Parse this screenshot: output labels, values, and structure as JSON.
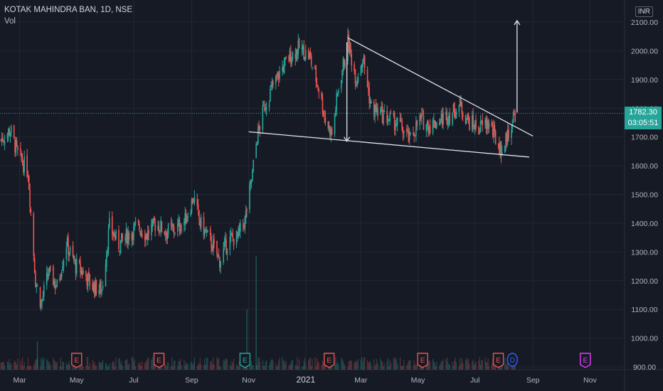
{
  "header": {
    "symbol": "KOTAK MAHINDRA BAN, 1D, NSE",
    "indicator": "Vol"
  },
  "currency_label": "INR",
  "last_price": {
    "value": "1782.30",
    "countdown": "03:05:51",
    "color": "#26a69a"
  },
  "colors": {
    "background": "#161a25",
    "up": "#26a69a",
    "down": "#ef5350",
    "grid": "#232733",
    "drawings": "#e0e3eb",
    "earnings": "#ef5350",
    "earnings_upcoming": "#e040fb",
    "dividend": "#2962ff"
  },
  "markers": [
    {
      "type": "earnings",
      "label": "E",
      "date": "2020-05-01",
      "color": "#ef5350"
    },
    {
      "type": "earnings",
      "label": "E",
      "date": "2020-07-28",
      "color": "#ef5350"
    },
    {
      "type": "earnings",
      "label": "E",
      "date": "2020-10-28",
      "color": "#26a69a"
    },
    {
      "type": "earnings",
      "label": "E",
      "date": "2021-01-26",
      "color": "#ef5350"
    },
    {
      "type": "earnings",
      "label": "E",
      "date": "2021-05-06",
      "color": "#ef5350"
    },
    {
      "type": "earnings",
      "label": "E",
      "date": "2021-07-26",
      "color": "#ef5350"
    },
    {
      "type": "dividend",
      "label": "D",
      "date": "2021-08-10",
      "color": "#2962ff"
    },
    {
      "type": "earnings",
      "label": "E",
      "date": "2021-10-27",
      "color": "#e040fb"
    }
  ],
  "drawings": {
    "upper_trendline": [
      [
        "2021-02-15",
        2045
      ],
      [
        "2021-09-01",
        1703
      ]
    ],
    "lower_trendline": [
      [
        "2020-11-01",
        1718
      ],
      [
        "2021-08-28",
        1630
      ]
    ],
    "target_arrow_down": [
      [
        "2021-02-14",
        2030
      ],
      [
        "2021-02-14",
        1685
      ]
    ],
    "target_arrow_up": [
      [
        "2021-08-15",
        1785
      ],
      [
        "2021-08-15",
        2105
      ]
    ]
  },
  "chart_data": {
    "type": "candlestick",
    "y_axis": {
      "ylim": [
        900,
        2130
      ],
      "ticks": [
        900,
        1000,
        1100,
        1200,
        1300,
        1400,
        1500,
        1600,
        1700,
        1800,
        1900,
        2000,
        2100
      ],
      "tick_labels": [
        "900.00",
        "1000.00",
        "1100.00",
        "1200.00",
        "1300.00",
        "1400.00",
        "1500.00",
        "1600.00",
        "1700.00",
        "1800.00",
        "1900.00",
        "2000.00",
        "2100.00"
      ]
    },
    "x_axis": {
      "xlim": [
        "2020-02-09",
        "2021-12-08"
      ],
      "ticks": [
        {
          "date": "2020-03-01",
          "label": "Mar"
        },
        {
          "date": "2020-05-01",
          "label": "May"
        },
        {
          "date": "2020-07-01",
          "label": "Jul"
        },
        {
          "date": "2020-09-01",
          "label": "Sep"
        },
        {
          "date": "2020-11-01",
          "label": "Nov"
        },
        {
          "date": "2021-01-01",
          "label": "2021"
        },
        {
          "date": "2021-03-01",
          "label": "Mar"
        },
        {
          "date": "2021-05-01",
          "label": "May"
        },
        {
          "date": "2021-07-01",
          "label": "Jul"
        },
        {
          "date": "2021-09-01",
          "label": "Sep"
        },
        {
          "date": "2021-11-01",
          "label": "Nov"
        }
      ]
    },
    "grid": true,
    "price_path": [
      [
        "2020-02-10",
        1690
      ],
      [
        "2020-02-20",
        1725
      ],
      [
        "2020-02-28",
        1640
      ],
      [
        "2020-03-10",
        1580
      ],
      [
        "2020-03-18",
        1200
      ],
      [
        "2020-03-24",
        1120
      ],
      [
        "2020-04-01",
        1230
      ],
      [
        "2020-04-10",
        1180
      ],
      [
        "2020-04-20",
        1330
      ],
      [
        "2020-04-30",
        1250
      ],
      [
        "2020-05-08",
        1230
      ],
      [
        "2020-05-18",
        1180
      ],
      [
        "2020-05-28",
        1170
      ],
      [
        "2020-06-05",
        1390
      ],
      [
        "2020-06-15",
        1325
      ],
      [
        "2020-06-25",
        1360
      ],
      [
        "2020-07-05",
        1390
      ],
      [
        "2020-07-15",
        1360
      ],
      [
        "2020-07-25",
        1400
      ],
      [
        "2020-08-05",
        1370
      ],
      [
        "2020-08-15",
        1380
      ],
      [
        "2020-08-25",
        1410
      ],
      [
        "2020-09-03",
        1490
      ],
      [
        "2020-09-10",
        1400
      ],
      [
        "2020-09-22",
        1330
      ],
      [
        "2020-10-01",
        1270
      ],
      [
        "2020-10-10",
        1340
      ],
      [
        "2020-10-20",
        1350
      ],
      [
        "2020-10-28",
        1410
      ],
      [
        "2020-11-04",
        1550
      ],
      [
        "2020-11-10",
        1700
      ],
      [
        "2020-11-18",
        1810
      ],
      [
        "2020-11-26",
        1870
      ],
      [
        "2020-12-05",
        1930
      ],
      [
        "2020-12-15",
        1980
      ],
      [
        "2020-12-25",
        2010
      ],
      [
        "2021-01-05",
        1980
      ],
      [
        "2021-01-15",
        1870
      ],
      [
        "2021-01-22",
        1760
      ],
      [
        "2021-01-29",
        1710
      ],
      [
        "2021-02-05",
        1870
      ],
      [
        "2021-02-15",
        2030
      ],
      [
        "2021-02-24",
        1900
      ],
      [
        "2021-03-03",
        1980
      ],
      [
        "2021-03-12",
        1800
      ],
      [
        "2021-03-22",
        1780
      ],
      [
        "2021-04-01",
        1760
      ],
      [
        "2021-04-12",
        1740
      ],
      [
        "2021-04-22",
        1690
      ],
      [
        "2021-05-03",
        1760
      ],
      [
        "2021-05-14",
        1740
      ],
      [
        "2021-05-25",
        1760
      ],
      [
        "2021-06-05",
        1780
      ],
      [
        "2021-06-15",
        1810
      ],
      [
        "2021-06-25",
        1750
      ],
      [
        "2021-07-05",
        1730
      ],
      [
        "2021-07-15",
        1750
      ],
      [
        "2021-07-25",
        1680
      ],
      [
        "2021-07-30",
        1650
      ],
      [
        "2021-08-06",
        1720
      ],
      [
        "2021-08-13",
        1782
      ]
    ],
    "volume_spikes": [
      [
        "2020-10-30",
        "high"
      ],
      [
        "2020-11-09",
        "very_high"
      ],
      [
        "2020-03-20",
        "mid"
      ]
    ]
  }
}
